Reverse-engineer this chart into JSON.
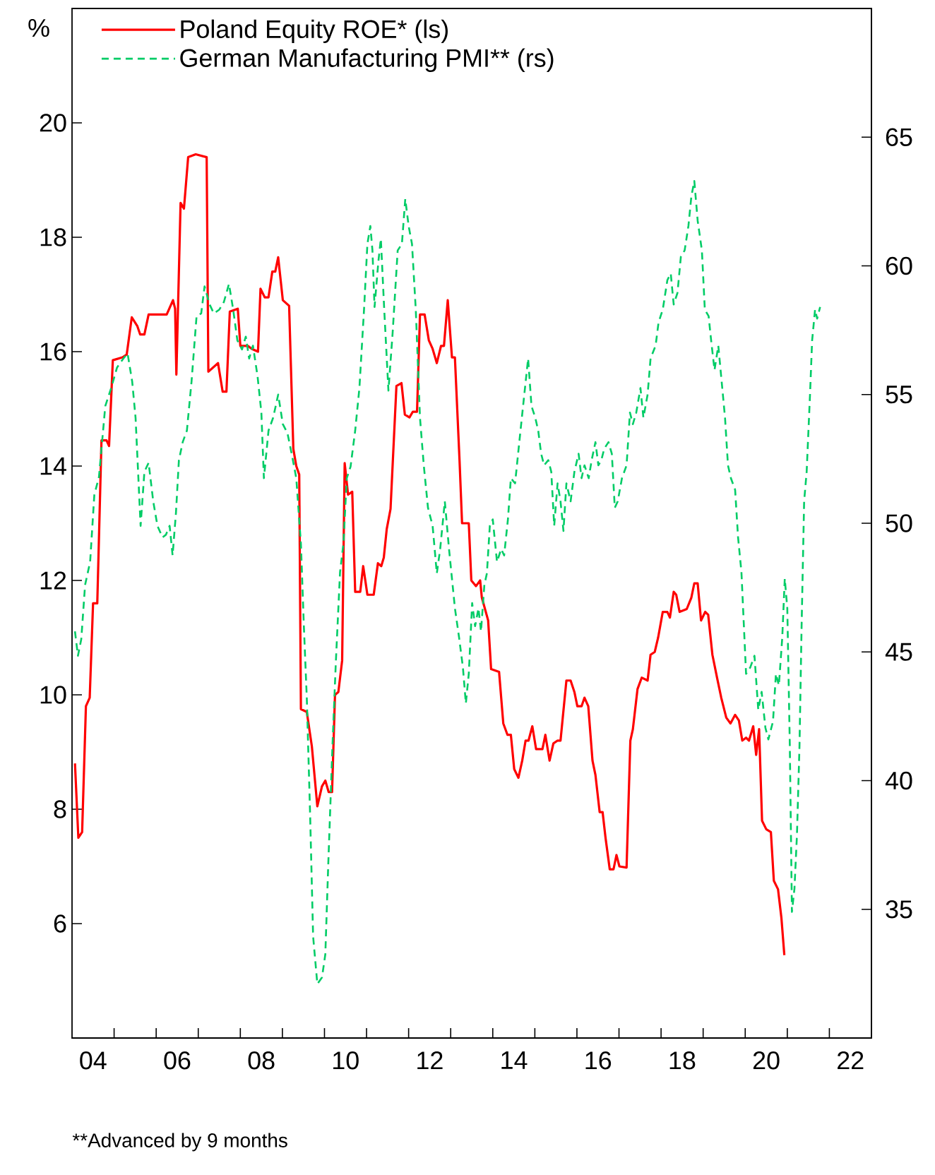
{
  "chart_data": {
    "type": "line",
    "ylabel": "%",
    "legend": "top left",
    "annotations": [
      "**Advanced by 9 months"
    ],
    "xlim": [
      3.5,
      22.5
    ],
    "xticks": [
      {
        "value": 4,
        "label": "04"
      },
      {
        "value": 6,
        "label": "06"
      },
      {
        "value": 8,
        "label": "08"
      },
      {
        "value": 10,
        "label": "10"
      },
      {
        "value": 12,
        "label": "12"
      },
      {
        "value": 14,
        "label": "14"
      },
      {
        "value": 16,
        "label": "16"
      },
      {
        "value": 18,
        "label": "18"
      },
      {
        "value": 20,
        "label": "20"
      },
      {
        "value": 22,
        "label": "22"
      },
      {
        "value": 4.5,
        "label": null
      },
      {
        "value": 5.5,
        "label": null
      },
      {
        "value": 6.5,
        "label": null
      },
      {
        "value": 7.5,
        "label": null
      },
      {
        "value": 8.5,
        "label": null
      },
      {
        "value": 9.5,
        "label": null
      },
      {
        "value": 10.5,
        "label": null
      },
      {
        "value": 11.5,
        "label": null
      },
      {
        "value": 12.5,
        "label": null
      },
      {
        "value": 13.5,
        "label": null
      },
      {
        "value": 14.5,
        "label": null
      },
      {
        "value": 15.5,
        "label": null
      },
      {
        "value": 16.5,
        "label": null
      },
      {
        "value": 17.5,
        "label": null
      },
      {
        "value": 18.5,
        "label": null
      },
      {
        "value": 19.5,
        "label": null
      },
      {
        "value": 20.5,
        "label": null
      },
      {
        "value": 21.5,
        "label": null
      }
    ],
    "ylim": [
      4,
      22
    ],
    "yticks": [
      6,
      8,
      10,
      12,
      14,
      16,
      18,
      20
    ],
    "y2lim": [
      30,
      70
    ],
    "y2ticks": [
      35,
      40,
      45,
      50,
      55,
      60,
      65
    ],
    "series": [
      {
        "name": "Poland Equity ROE* (ls)",
        "color": "#ff0000",
        "line_style": "solid",
        "x": [
          3.57,
          3.65,
          3.74,
          3.83,
          3.92,
          4.0,
          4.1,
          4.2,
          4.32,
          4.38,
          4.47,
          4.7,
          4.8,
          4.92,
          5.05,
          5.12,
          5.22,
          5.32,
          5.75,
          5.9,
          5.95,
          5.98,
          6.08,
          6.16,
          6.26,
          6.44,
          6.7,
          6.74,
          6.97,
          7.08,
          7.17,
          7.25,
          7.44,
          7.5,
          7.68,
          7.77,
          7.92,
          7.98,
          8.08,
          8.17,
          8.26,
          8.33,
          8.4,
          8.51,
          8.66,
          8.76,
          8.83,
          8.9,
          8.94,
          9.08,
          9.2,
          9.33,
          9.44,
          9.52,
          9.6,
          9.68,
          9.75,
          9.83,
          9.92,
          9.98,
          10.06,
          10.16,
          10.23,
          10.35,
          10.42,
          10.52,
          10.67,
          10.77,
          10.85,
          10.91,
          10.98,
          11.07,
          11.21,
          11.33,
          11.41,
          11.52,
          11.6,
          11.7,
          11.77,
          11.88,
          11.98,
          12.07,
          12.17,
          12.27,
          12.34,
          12.43,
          12.53,
          12.6,
          12.71,
          12.77,
          12.93,
          12.99,
          13.1,
          13.2,
          13.24,
          13.39,
          13.46,
          13.65,
          13.75,
          13.85,
          13.93,
          14.01,
          14.11,
          14.2,
          14.28,
          14.35,
          14.44,
          14.53,
          14.68,
          14.75,
          14.85,
          14.94,
          15.04,
          15.11,
          15.25,
          15.35,
          15.44,
          15.51,
          15.61,
          15.68,
          15.77,
          15.87,
          15.94,
          16.04,
          16.11,
          16.18,
          16.28,
          16.37,
          16.44,
          16.51,
          16.68,
          16.77,
          16.83,
          16.94,
          17.04,
          17.18,
          17.25,
          17.35,
          17.43,
          17.54,
          17.65,
          17.71,
          17.8,
          17.86,
          17.94,
          18.11,
          18.22,
          18.29,
          18.37,
          18.45,
          18.55,
          18.62,
          18.72,
          18.83,
          18.93,
          19.05,
          19.15,
          19.26,
          19.35,
          19.43,
          19.52,
          19.59,
          19.69,
          19.76,
          19.83,
          19.9,
          20.0,
          20.11,
          20.18,
          20.28,
          20.36,
          20.43
        ],
        "values": [
          8.8,
          7.5,
          7.6,
          9.8,
          9.95,
          11.6,
          11.6,
          14.45,
          14.45,
          14.35,
          15.85,
          15.9,
          15.95,
          16.6,
          16.45,
          16.3,
          16.3,
          16.65,
          16.65,
          16.9,
          16.75,
          15.6,
          18.6,
          18.5,
          19.4,
          19.45,
          19.4,
          15.65,
          15.8,
          15.3,
          15.3,
          16.7,
          16.75,
          16.1,
          16.1,
          16.05,
          16.0,
          17.1,
          16.95,
          16.95,
          17.4,
          17.4,
          17.65,
          16.9,
          16.8,
          14.3,
          14.0,
          13.85,
          9.75,
          9.7,
          9.1,
          8.05,
          8.4,
          8.5,
          8.3,
          8.3,
          10.0,
          10.05,
          10.6,
          14.05,
          13.5,
          13.55,
          11.8,
          11.8,
          12.25,
          11.75,
          11.75,
          12.3,
          12.25,
          12.4,
          12.9,
          13.25,
          15.4,
          15.45,
          14.9,
          14.85,
          14.95,
          14.95,
          16.65,
          16.65,
          16.2,
          16.05,
          15.8,
          16.1,
          16.1,
          16.9,
          15.9,
          15.9,
          14.1,
          13.0,
          13.0,
          12.0,
          11.9,
          12.0,
          11.7,
          11.3,
          10.45,
          10.4,
          9.5,
          9.3,
          9.3,
          8.7,
          8.55,
          8.85,
          9.2,
          9.2,
          9.45,
          9.05,
          9.05,
          9.3,
          8.85,
          9.15,
          9.2,
          9.2,
          10.25,
          10.25,
          10.05,
          9.8,
          9.8,
          9.95,
          9.8,
          8.85,
          8.6,
          7.95,
          7.95,
          7.5,
          6.95,
          6.95,
          7.2,
          7.0,
          6.98,
          9.2,
          9.4,
          10.1,
          10.3,
          10.25,
          10.7,
          10.75,
          11.0,
          11.45,
          11.45,
          11.35,
          11.8,
          11.75,
          11.45,
          11.5,
          11.7,
          11.95,
          11.95,
          11.3,
          11.45,
          11.4,
          10.7,
          10.3,
          9.95,
          9.6,
          9.5,
          9.65,
          9.55,
          9.2,
          9.25,
          9.2,
          9.45,
          8.95,
          9.4,
          7.8,
          7.65,
          7.6,
          6.75,
          6.6,
          6.1,
          5.45
        ]
      },
      {
        "name": "German Manufacturing PMI** (rs)",
        "color": "#00cc66",
        "line_style": "dashed",
        "axis": "y2",
        "x": [
          3.57,
          3.64,
          3.72,
          3.81,
          3.93,
          4.03,
          4.14,
          4.29,
          4.43,
          4.57,
          4.72,
          4.82,
          4.93,
          5.01,
          5.13,
          5.22,
          5.32,
          5.43,
          5.53,
          5.65,
          5.73,
          5.82,
          5.89,
          5.97,
          6.04,
          6.13,
          6.23,
          6.34,
          6.46,
          6.57,
          6.65,
          6.77,
          6.87,
          7.0,
          7.11,
          7.23,
          7.33,
          7.43,
          7.54,
          7.63,
          7.71,
          7.8,
          7.91,
          8.0,
          8.06,
          8.17,
          8.28,
          8.4,
          8.51,
          8.62,
          8.72,
          8.83,
          8.94,
          9.01,
          9.08,
          9.16,
          9.23,
          9.33,
          9.44,
          9.52,
          9.59,
          9.69,
          9.77,
          9.87,
          9.95,
          10.03,
          10.12,
          10.23,
          10.33,
          10.44,
          10.52,
          10.59,
          10.64,
          10.69,
          10.78,
          10.84,
          10.92,
          11.02,
          11.12,
          11.24,
          11.34,
          11.42,
          11.5,
          11.58,
          11.67,
          11.77,
          11.86,
          11.96,
          12.07,
          12.17,
          12.25,
          12.36,
          12.46,
          12.6,
          12.7,
          12.79,
          12.86,
          12.93,
          13.01,
          13.08,
          13.16,
          13.22,
          13.3,
          13.36,
          13.43,
          13.5,
          13.6,
          13.7,
          13.77,
          13.86,
          13.93,
          14.03,
          14.13,
          14.22,
          14.34,
          14.42,
          14.51,
          14.58,
          14.65,
          14.72,
          14.82,
          14.89,
          14.96,
          15.04,
          15.11,
          15.18,
          15.25,
          15.35,
          15.44,
          15.54,
          15.61,
          15.68,
          15.78,
          15.85,
          15.94,
          16.01,
          16.08,
          16.15,
          16.25,
          16.33,
          16.4,
          16.47,
          16.57,
          16.68,
          16.76,
          16.83,
          16.91,
          17.01,
          17.08,
          17.18,
          17.25,
          17.37,
          17.44,
          17.54,
          17.65,
          17.73,
          17.8,
          17.89,
          17.97,
          18.06,
          18.15,
          18.22,
          18.29,
          18.37,
          18.47,
          18.54,
          18.63,
          18.69,
          18.77,
          18.86,
          18.94,
          19.02,
          19.09,
          19.16,
          19.26,
          19.33,
          19.41,
          19.52,
          19.62,
          19.72,
          19.81,
          19.89,
          19.98,
          20.05,
          20.16,
          20.23,
          20.3,
          20.38,
          20.44,
          20.5,
          20.56,
          20.61,
          20.67,
          20.73,
          20.79,
          20.84,
          20.9,
          20.96,
          21.04,
          21.09,
          21.16,
          21.21,
          21.28
        ],
        "values": [
          45.8,
          44.85,
          45.5,
          47.6,
          48.5,
          51.1,
          51.8,
          54.55,
          55.25,
          56.05,
          56.4,
          56.6,
          55.5,
          54.1,
          49.9,
          52.0,
          52.35,
          50.85,
          49.9,
          49.45,
          49.55,
          49.9,
          48.75,
          50.4,
          52.45,
          53.15,
          53.6,
          55.5,
          58.05,
          58.15,
          59.2,
          58.5,
          58.15,
          58.3,
          58.6,
          59.3,
          58.3,
          57.1,
          56.75,
          57.25,
          56.4,
          56.9,
          55.7,
          54.3,
          51.75,
          53.6,
          54.1,
          55.0,
          53.85,
          53.5,
          52.7,
          51.75,
          49.2,
          46.0,
          43.2,
          38.6,
          33.95,
          32.1,
          32.35,
          33.25,
          36.75,
          41.35,
          44.6,
          48.1,
          49.2,
          51.75,
          52.2,
          53.6,
          55.25,
          58.3,
          60.85,
          61.55,
          60.6,
          58.4,
          60.15,
          61.05,
          58.3,
          55.15,
          57.4,
          60.6,
          60.85,
          62.6,
          61.55,
          60.85,
          58.3,
          54.1,
          52.25,
          50.6,
          49.9,
          48.05,
          49.0,
          50.85,
          49.0,
          46.7,
          45.55,
          44.4,
          43.0,
          44.15,
          46.9,
          46.0,
          46.7,
          45.8,
          47.6,
          48.05,
          49.9,
          50.15,
          48.5,
          49.0,
          48.75,
          50.15,
          51.75,
          51.55,
          53.15,
          54.55,
          56.4,
          54.55,
          54.1,
          53.6,
          52.7,
          52.25,
          52.45,
          52.0,
          49.9,
          51.55,
          50.85,
          49.7,
          51.55,
          50.85,
          52.0,
          52.7,
          51.75,
          52.25,
          51.75,
          52.45,
          53.15,
          52.25,
          52.45,
          52.9,
          53.15,
          52.7,
          50.6,
          50.85,
          51.75,
          52.25,
          54.3,
          53.85,
          54.3,
          55.25,
          54.1,
          55.0,
          56.4,
          56.9,
          57.8,
          58.3,
          59.45,
          59.7,
          58.5,
          58.95,
          60.35,
          60.6,
          61.55,
          62.7,
          63.3,
          61.75,
          60.6,
          58.3,
          58.05,
          57.1,
          55.95,
          56.9,
          55.5,
          54.1,
          52.25,
          51.75,
          51.3,
          49.45,
          48.1,
          44.15,
          44.4,
          44.85,
          42.75,
          43.45,
          42.05,
          41.6,
          42.3,
          44.15,
          43.7,
          45.55,
          47.85,
          46.7,
          41.35,
          34.9,
          35.8,
          37.9,
          41.35,
          46.0,
          50.85,
          52.0,
          55.0,
          57.1,
          58.3,
          57.95,
          58.4
        ]
      }
    ]
  }
}
